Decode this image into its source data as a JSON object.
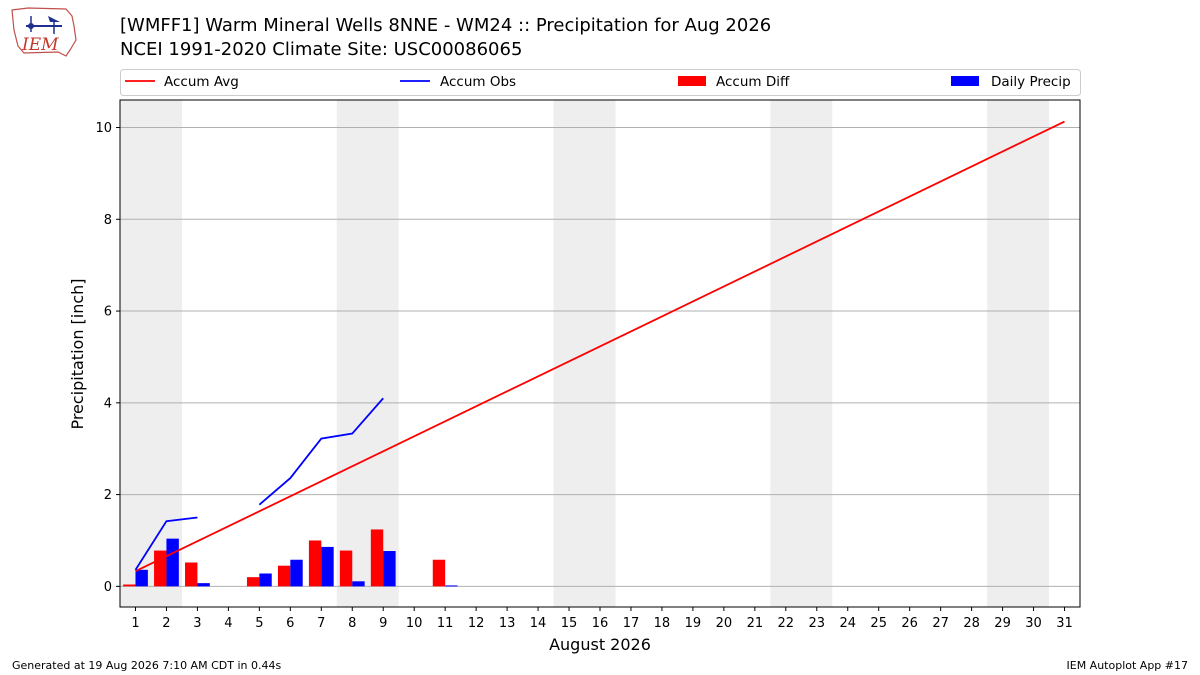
{
  "header": {
    "logo_text": "IEM",
    "title_line1": "[WMFF1] Warm Mineral Wells 8NNE - WM24 :: Precipitation for Aug 2026",
    "title_line2": "NCEI 1991-2020 Climate Site: USC00086065"
  },
  "footer": {
    "generated": "Generated at 19 Aug 2026 7:10 AM CDT in 0.44s",
    "app": "IEM Autoplot App #17"
  },
  "colors": {
    "accum_avg": "#ff0000",
    "accum_obs": "#0000ff",
    "accum_diff": "#ff0000",
    "daily_precip": "#0000ff",
    "weekend_shade": "#eeeeee",
    "grid": "#b0b0b0"
  },
  "chart_data": {
    "type": "bar",
    "xlabel": "August 2026",
    "ylabel": "Precipitation [inch]",
    "xlim": [
      0.5,
      31.5
    ],
    "ylim": [
      -0.45,
      10.6
    ],
    "x_ticks": [
      "1",
      "2",
      "3",
      "4",
      "5",
      "6",
      "7",
      "8",
      "9",
      "10",
      "11",
      "12",
      "13",
      "14",
      "15",
      "16",
      "17",
      "18",
      "19",
      "20",
      "21",
      "22",
      "23",
      "24",
      "25",
      "26",
      "27",
      "28",
      "29",
      "30",
      "31"
    ],
    "y_ticks": [
      0,
      2,
      4,
      6,
      8,
      10
    ],
    "grid": "horizontal",
    "legend_position": "top",
    "legend": [
      {
        "label": "Accum Avg",
        "kind": "line",
        "series": "accum_avg"
      },
      {
        "label": "Accum Obs",
        "kind": "line",
        "series": "accum_obs"
      },
      {
        "label": "Accum Diff",
        "kind": "bar",
        "series": "accum_diff"
      },
      {
        "label": "Daily Precip",
        "kind": "bar",
        "series": "daily_precip"
      }
    ],
    "weekend_spans": [
      [
        1,
        2
      ],
      [
        8,
        9
      ],
      [
        15,
        16
      ],
      [
        22,
        23
      ],
      [
        29,
        30
      ]
    ],
    "accum_avg": {
      "x": [
        1,
        31
      ],
      "y": [
        0.33,
        10.13
      ]
    },
    "accum_obs_segments": [
      {
        "x": [
          1,
          2,
          3
        ],
        "y": [
          0.36,
          1.42,
          1.5
        ]
      },
      {
        "x": [
          5,
          6,
          7,
          8,
          9
        ],
        "y": [
          1.78,
          2.36,
          3.22,
          3.33,
          4.1
        ]
      }
    ],
    "accum_diff": [
      {
        "day": 1,
        "value": 0.04
      },
      {
        "day": 2,
        "value": 0.78
      },
      {
        "day": 3,
        "value": 0.52
      },
      {
        "day": 5,
        "value": 0.2
      },
      {
        "day": 6,
        "value": 0.45
      },
      {
        "day": 7,
        "value": 1.0
      },
      {
        "day": 8,
        "value": 0.78
      },
      {
        "day": 9,
        "value": 1.24
      },
      {
        "day": 11,
        "value": 0.58
      }
    ],
    "daily_precip": [
      {
        "day": 1,
        "value": 0.36
      },
      {
        "day": 2,
        "value": 1.04
      },
      {
        "day": 3,
        "value": 0.07
      },
      {
        "day": 5,
        "value": 0.28
      },
      {
        "day": 6,
        "value": 0.58
      },
      {
        "day": 7,
        "value": 0.86
      },
      {
        "day": 8,
        "value": 0.11
      },
      {
        "day": 9,
        "value": 0.77
      },
      {
        "day": 11,
        "value": 0.02
      }
    ]
  }
}
